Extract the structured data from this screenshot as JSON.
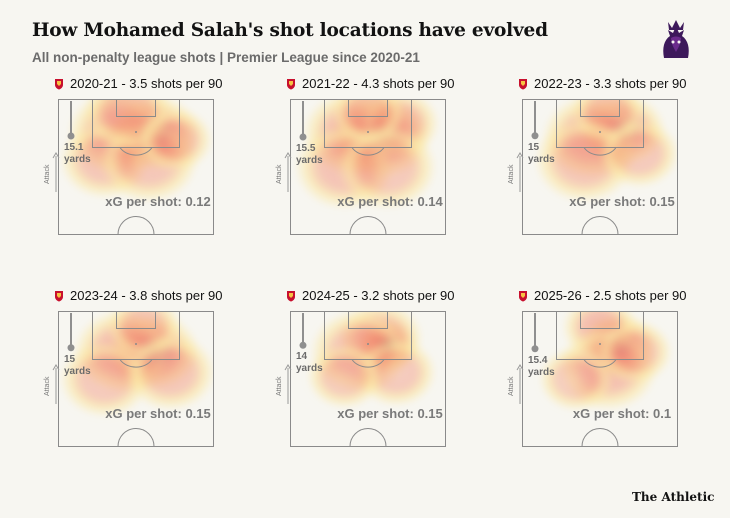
{
  "title": "How Mohamed Salah's shot locations have evolved",
  "subtitle": "All non-penalty league shots | Premier League since 2020-21",
  "brand": "The Athletic",
  "logo_icon": "premier-league-lion-icon",
  "crest_icon": "liverpool-crest-icon",
  "attack_label": "Attack",
  "xg_prefix": "xG per shot: ",
  "yards_label": "yards",
  "colors": {
    "background": "#f7f6f1",
    "pitch_line": "#8a8a8a",
    "heat_low": "#fbe7a4",
    "heat_mid": "#f1846a",
    "heat_high": "#8a2f86",
    "heat_peak": "#2a0d4e"
  },
  "chart_data": [
    {
      "type": "heatmap",
      "season": "2020-21",
      "shots_per_90": 3.5,
      "title": "2020-21 - 3.5 shots per 90",
      "avg_distance_yards": 15.1,
      "xg_per_shot": 0.12,
      "hotspots": [
        {
          "x": 0.62,
          "y": 0.25,
          "w": 0.9,
          "r": 0.18
        },
        {
          "x": 0.38,
          "y": 0.25,
          "w": 0.6,
          "r": 0.2
        },
        {
          "x": 0.3,
          "y": 0.45,
          "w": 0.4,
          "r": 0.18
        },
        {
          "x": 0.58,
          "y": 0.45,
          "w": 0.4,
          "r": 0.2
        },
        {
          "x": 0.45,
          "y": 0.1,
          "w": 0.45,
          "r": 0.18
        },
        {
          "x": 0.75,
          "y": 0.3,
          "w": 0.45,
          "r": 0.15
        }
      ]
    },
    {
      "type": "heatmap",
      "season": "2021-22",
      "shots_per_90": 4.3,
      "title": "2021-22 - 4.3 shots per 90",
      "avg_distance_yards": 15.5,
      "xg_per_shot": 0.14,
      "hotspots": [
        {
          "x": 0.58,
          "y": 0.28,
          "w": 0.85,
          "r": 0.2
        },
        {
          "x": 0.4,
          "y": 0.25,
          "w": 0.6,
          "r": 0.2
        },
        {
          "x": 0.7,
          "y": 0.18,
          "w": 0.55,
          "r": 0.16
        },
        {
          "x": 0.35,
          "y": 0.5,
          "w": 0.45,
          "r": 0.2
        },
        {
          "x": 0.62,
          "y": 0.5,
          "w": 0.35,
          "r": 0.2
        },
        {
          "x": 0.5,
          "y": 0.1,
          "w": 0.4,
          "r": 0.15
        }
      ]
    },
    {
      "type": "heatmap",
      "season": "2022-23",
      "shots_per_90": 3.3,
      "title": "2022-23 - 3.3 shots per 90",
      "avg_distance_yards": 15,
      "xg_per_shot": 0.15,
      "hotspots": [
        {
          "x": 0.65,
          "y": 0.23,
          "w": 0.75,
          "r": 0.17
        },
        {
          "x": 0.45,
          "y": 0.28,
          "w": 0.6,
          "r": 0.2
        },
        {
          "x": 0.55,
          "y": 0.1,
          "w": 0.45,
          "r": 0.15
        },
        {
          "x": 0.4,
          "y": 0.45,
          "w": 0.4,
          "r": 0.2
        },
        {
          "x": 0.75,
          "y": 0.4,
          "w": 0.35,
          "r": 0.16
        }
      ]
    },
    {
      "type": "heatmap",
      "season": "2023-24",
      "shots_per_90": 3.8,
      "title": "2023-24 - 3.8 shots per 90",
      "avg_distance_yards": 15,
      "xg_per_shot": 0.15,
      "hotspots": [
        {
          "x": 0.62,
          "y": 0.3,
          "w": 0.8,
          "r": 0.18
        },
        {
          "x": 0.42,
          "y": 0.3,
          "w": 0.6,
          "r": 0.2
        },
        {
          "x": 0.55,
          "y": 0.12,
          "w": 0.45,
          "r": 0.15
        },
        {
          "x": 0.3,
          "y": 0.5,
          "w": 0.35,
          "r": 0.18
        },
        {
          "x": 0.72,
          "y": 0.45,
          "w": 0.4,
          "r": 0.18
        }
      ]
    },
    {
      "type": "heatmap",
      "season": "2024-25",
      "shots_per_90": 3.2,
      "title": "2024-25 - 3.2 shots per 90",
      "avg_distance_yards": 14,
      "xg_per_shot": 0.15,
      "hotspots": [
        {
          "x": 0.63,
          "y": 0.25,
          "w": 1.0,
          "r": 0.12
        },
        {
          "x": 0.58,
          "y": 0.2,
          "w": 0.7,
          "r": 0.17
        },
        {
          "x": 0.45,
          "y": 0.3,
          "w": 0.45,
          "r": 0.2
        },
        {
          "x": 0.68,
          "y": 0.45,
          "w": 0.35,
          "r": 0.16
        },
        {
          "x": 0.35,
          "y": 0.48,
          "w": 0.3,
          "r": 0.15
        }
      ]
    },
    {
      "type": "heatmap",
      "season": "2025-26",
      "shots_per_90": 2.5,
      "title": "2025-26 - 2.5 shots per 90",
      "avg_distance_yards": 15.4,
      "xg_per_shot": 0.1,
      "hotspots": [
        {
          "x": 0.62,
          "y": 0.25,
          "w": 0.85,
          "r": 0.15
        },
        {
          "x": 0.5,
          "y": 0.12,
          "w": 0.55,
          "r": 0.15
        },
        {
          "x": 0.55,
          "y": 0.42,
          "w": 0.55,
          "r": 0.2
        },
        {
          "x": 0.72,
          "y": 0.3,
          "w": 0.4,
          "r": 0.15
        },
        {
          "x": 0.35,
          "y": 0.5,
          "w": 0.25,
          "r": 0.15
        }
      ]
    }
  ]
}
